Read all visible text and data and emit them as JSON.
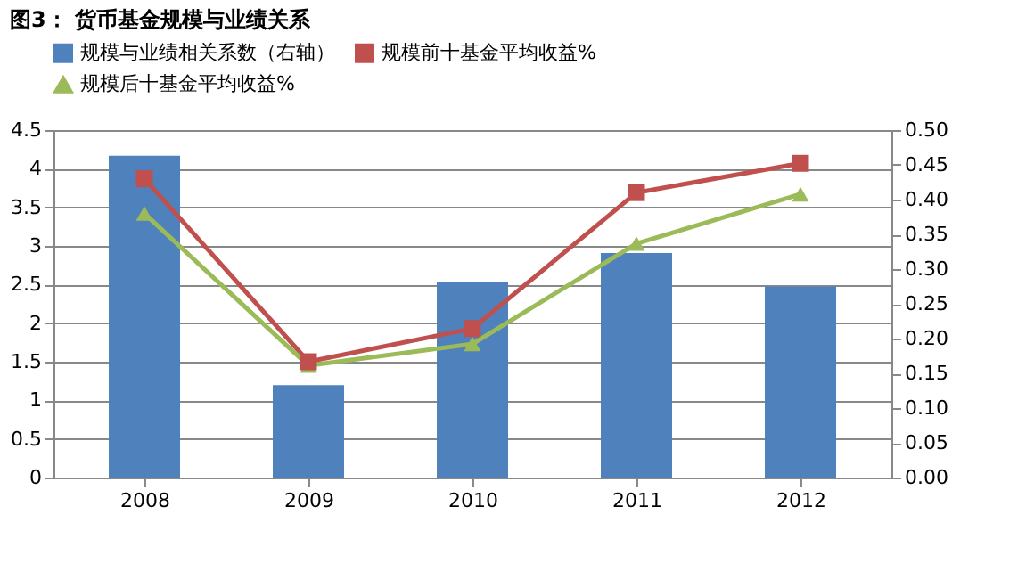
{
  "chart_data": {
    "type": "line",
    "title": "图3：  货币基金规模与业绩关系",
    "categories": [
      "2008",
      "2009",
      "2010",
      "2011",
      "2012"
    ],
    "series": [
      {
        "name": "规模与业绩相关系数（右轴）",
        "type": "bar",
        "axis": "y2",
        "color": "#4f81bd",
        "values": [
          0.463,
          0.133,
          0.281,
          0.323,
          0.275
        ]
      },
      {
        "name": "规模前十基金平均收益%",
        "color": "#c0504d",
        "marker": "square",
        "values": [
          3.87,
          1.5,
          1.93,
          3.69,
          4.07
        ]
      },
      {
        "name": "规模后十基金平均收益%",
        "color": "#9bbb59",
        "marker": "triangle",
        "values": [
          3.42,
          1.45,
          1.73,
          3.03,
          3.67
        ]
      }
    ],
    "ylim": [
      0,
      4.5
    ],
    "yticks": [
      0,
      0.5,
      1,
      1.5,
      2,
      2.5,
      3,
      3.5,
      4,
      4.5
    ],
    "y2lim": [
      0,
      0.5
    ],
    "y2ticks": [
      {
        "value": 0,
        "label": "0.00"
      },
      {
        "value": 0.05,
        "label": "0.05"
      },
      {
        "value": 0.1,
        "label": "0.10"
      },
      {
        "value": 0.15,
        "label": "0.15"
      },
      {
        "value": 0.2,
        "label": "0.20"
      },
      {
        "value": 0.25,
        "label": "0.25"
      },
      {
        "value": 0.3,
        "label": "0.30"
      },
      {
        "value": 0.35,
        "label": "0.35"
      },
      {
        "value": 0.4,
        "label": "0.40"
      },
      {
        "value": 0.45,
        "label": "0.45"
      },
      {
        "value": 0.5,
        "label": "0.50"
      }
    ],
    "grid": "y",
    "legend": "top"
  }
}
